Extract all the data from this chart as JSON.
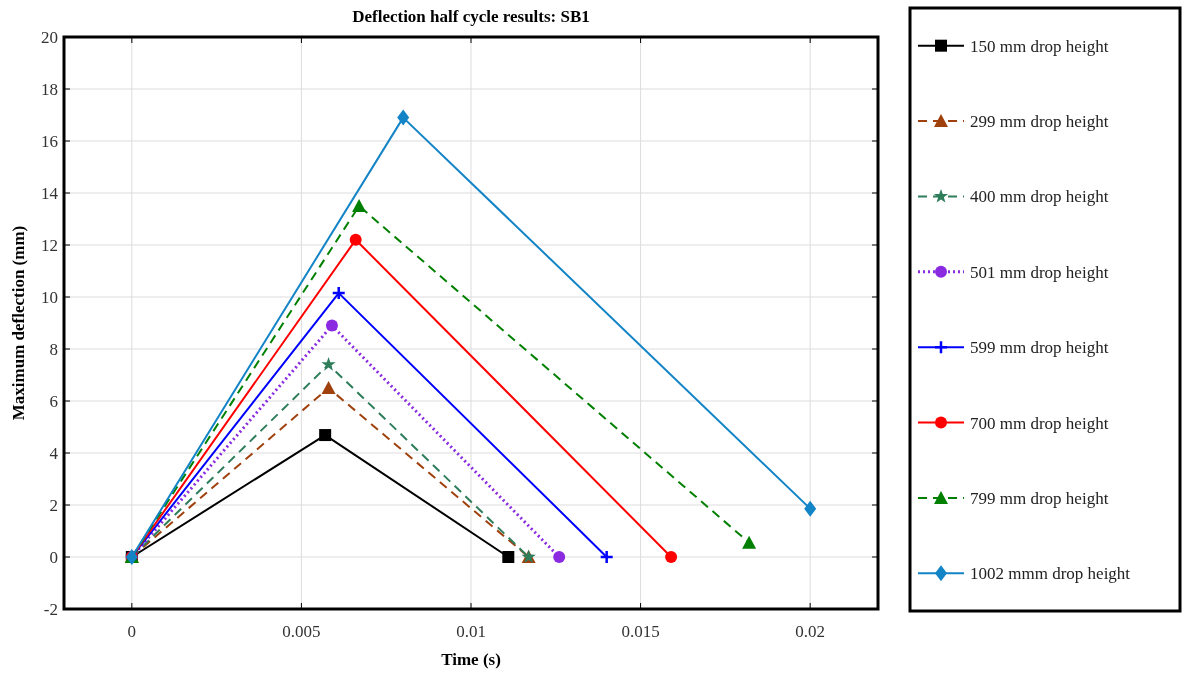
{
  "chart_data": {
    "type": "line",
    "title": "Deflection half cycle results: SB1",
    "xlabel": "Time (s)",
    "ylabel": "Maximum deflection (mm)",
    "xlim": [
      -0.002,
      0.022
    ],
    "xticks": [
      0,
      0.005,
      0.01,
      0.015,
      0.02
    ],
    "ylim": [
      -2,
      20
    ],
    "yticks": [
      -2,
      0,
      2,
      4,
      6,
      8,
      10,
      12,
      14,
      16,
      18,
      20
    ],
    "grid": true,
    "legend": "right",
    "series": [
      {
        "name": "150 mm drop height",
        "color": "#000000",
        "marker": "square",
        "line_style": "solid",
        "x": [
          0,
          0.0057,
          0.0111
        ],
        "values": [
          0,
          4.69,
          0
        ]
      },
      {
        "name": "299 mm drop height",
        "color": "#a0410d",
        "marker": "triangle",
        "line_style": "dashed",
        "x": [
          0,
          0.0058,
          0.0117
        ],
        "values": [
          0,
          6.5,
          0
        ]
      },
      {
        "name": "400 mm drop height",
        "color": "#2e7d5b",
        "marker": "star",
        "line_style": "dashed",
        "x": [
          0,
          0.0058,
          0.0117
        ],
        "values": [
          0,
          7.4,
          0
        ]
      },
      {
        "name": "501 mm drop height",
        "color": "#8a2be2",
        "marker": "circle",
        "line_style": "dotted",
        "x": [
          0,
          0.0059,
          0.0126
        ],
        "values": [
          0,
          8.9,
          0
        ]
      },
      {
        "name": "599 mm drop height",
        "color": "#0000ff",
        "marker": "cross",
        "line_style": "solid",
        "x": [
          0,
          0.0061,
          0.014
        ],
        "values": [
          0,
          10.15,
          0
        ]
      },
      {
        "name": "700 mm drop height",
        "color": "#ff0000",
        "marker": "circle",
        "line_style": "solid",
        "x": [
          0,
          0.0066,
          0.0159
        ],
        "values": [
          0,
          12.2,
          0
        ]
      },
      {
        "name": "799 mm drop height",
        "color": "#008000",
        "marker": "triangle",
        "line_style": "dashed",
        "x": [
          0,
          0.0067,
          0.0182
        ],
        "values": [
          0,
          13.5,
          0.55
        ]
      },
      {
        "name": "1002 mmm drop height",
        "color": "#1384c6",
        "marker": "diamond",
        "line_style": "solid",
        "x": [
          0,
          0.008,
          0.02
        ],
        "values": [
          0,
          16.9,
          1.86
        ]
      }
    ]
  }
}
